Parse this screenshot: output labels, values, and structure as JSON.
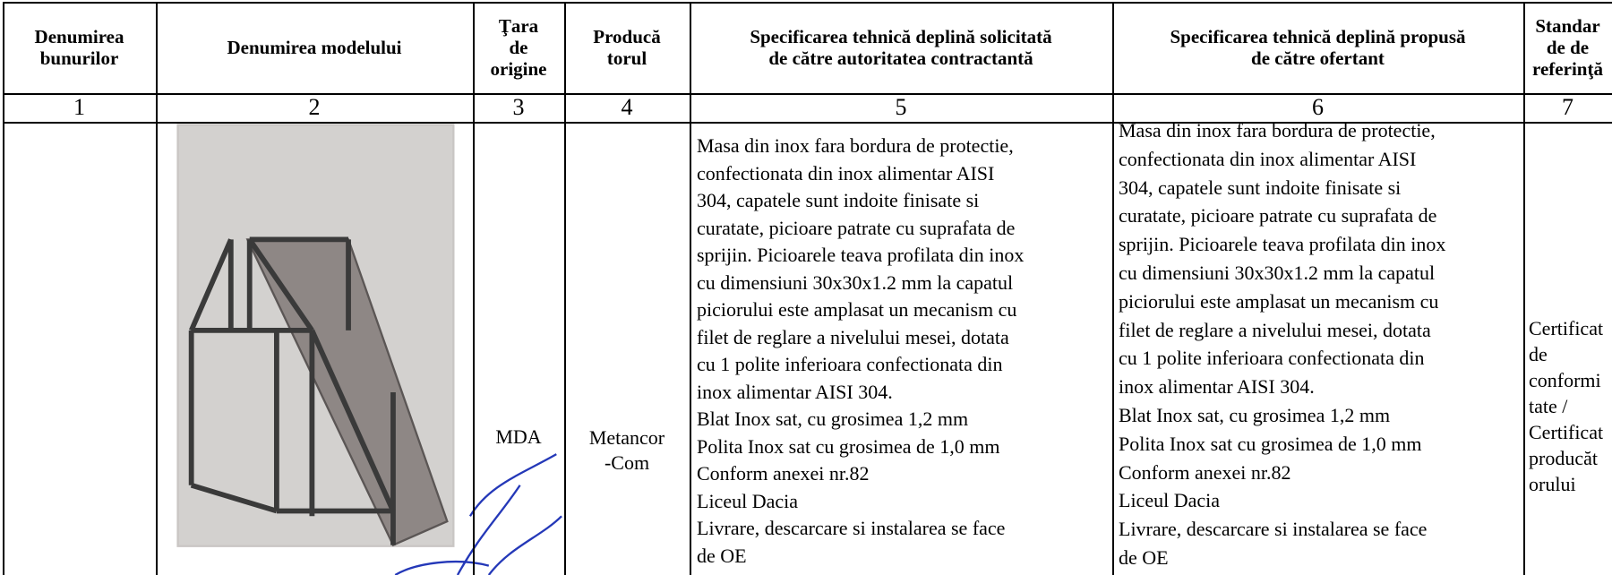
{
  "header": {
    "columns": [
      [
        "Denumirea",
        "bunurilor"
      ],
      [
        "Denumirea modelului"
      ],
      [
        "Ţara",
        "de",
        "origine"
      ],
      [
        "Producă",
        "torul"
      ],
      [
        "Specificarea tehnică deplină solicitată",
        "de către autoritatea contractantă"
      ],
      [
        "Specificarea tehnică deplină propusă",
        "de către ofertant"
      ],
      [
        "Standar",
        "de de",
        "referinţă"
      ]
    ]
  },
  "numbers": [
    1,
    2,
    3,
    4,
    5,
    6,
    7
  ],
  "row": {
    "country": "MDA",
    "producer": [
      "Metancor",
      "-Com"
    ],
    "requested_spec": [
      "Masa din inox fara bordura de protectie,",
      "confectionata din inox alimentar AISI",
      "304, capatele sunt indoite finisate si",
      "curatate, picioare patrate cu suprafata de",
      "sprijin. Picioarele teava profilata din inox",
      "cu dimensiuni 30x30x1.2 mm la capatul",
      "piciorului este amplasat un mecanism cu",
      "filet de reglare a nivelului mesei, dotata",
      "cu 1 polite inferioara confectionata din",
      "inox alimentar AISI 304.",
      "Blat Inox sat, cu grosimea 1,2 mm",
      "Polita Inox sat cu grosimea de 1,0 mm",
      "Conform anexei nr.82",
      "Liceul Dacia",
      "Livrare, descarcare si instalarea se face",
      "de OE"
    ],
    "proposed_spec": [
      "Masa din inox fara bordura de protectie,",
      "confectionata din inox alimentar AISI",
      "304, capatele sunt indoite finisate si",
      "curatate, picioare patrate cu suprafata de",
      "sprijin. Picioarele teava profilata din inox",
      "cu dimensiuni 30x30x1.2 mm la capatul",
      "piciorului este amplasat un mecanism cu",
      "filet de reglare a nivelului mesei, dotata",
      "cu 1 polite inferioara confectionata din",
      "inox alimentar AISI 304.",
      "Blat Inox sat, cu grosimea 1,2 mm",
      "Polita Inox sat cu grosimea de 1,0 mm",
      "Conform anexei nr.82",
      "Liceul Dacia",
      "Livrare, descarcare si instalarea se face",
      "de OE"
    ],
    "standards": [
      "Certificat",
      "de",
      "conformi",
      "tate /",
      "Certificat",
      "producăt",
      "orului"
    ]
  }
}
